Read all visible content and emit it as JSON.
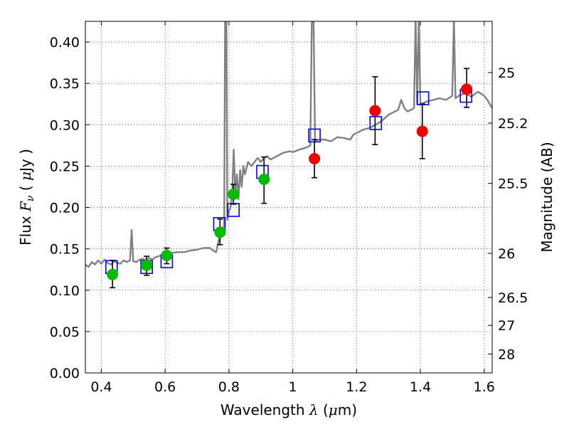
{
  "chart_data": {
    "type": "scatter",
    "xlabel": "Wavelength  λ (μm)",
    "ylabel": "Flux  F_ν  ( μJy )",
    "ylabel_parts": {
      "pre": "Flux  ",
      "sym": "F",
      "sub": "ν",
      "post": "  ( ",
      "mu": "μ",
      "unit": "Jy )"
    },
    "xlabel_parts": {
      "pre": "Wavelength  ",
      "sym": "λ",
      "post": " (",
      "mu": "μ",
      "unit": "m)"
    },
    "y2label": "Magnitude (AB)",
    "xlim": [
      0.35,
      1.625
    ],
    "ylim": [
      0.0,
      0.425
    ],
    "grid": true,
    "x_ticks": [
      0.4,
      0.6,
      0.8,
      1.0,
      1.2,
      1.4,
      1.6
    ],
    "x_tick_labels": [
      "0.4",
      "0.6",
      "0.8",
      "1",
      "1.2",
      "1.4",
      "1.6"
    ],
    "y_ticks": [
      0.0,
      0.05,
      0.1,
      0.15,
      0.2,
      0.25,
      0.3,
      0.35,
      0.4
    ],
    "y_tick_labels": [
      "0.00",
      "0.05",
      "0.10",
      "0.15",
      "0.20",
      "0.25",
      "0.30",
      "0.35",
      "0.40"
    ],
    "magnitude_ticks": [
      {
        "label": "25",
        "flux": 0.3631
      },
      {
        "label": "25.2",
        "flux": 0.302
      },
      {
        "label": "25.5",
        "flux": 0.2291
      },
      {
        "label": "26",
        "flux": 0.1445
      },
      {
        "label": "26.5",
        "flux": 0.0912
      },
      {
        "label": "27",
        "flux": 0.0575
      },
      {
        "label": "28",
        "flux": 0.0229
      }
    ],
    "series": [
      {
        "name": "model spectrum",
        "style": "line",
        "color": "#808080",
        "points": [
          [
            0.35,
            0.131
          ],
          [
            0.36,
            0.128
          ],
          [
            0.37,
            0.134
          ],
          [
            0.38,
            0.131
          ],
          [
            0.39,
            0.136
          ],
          [
            0.4,
            0.132
          ],
          [
            0.41,
            0.137
          ],
          [
            0.42,
            0.133
          ],
          [
            0.43,
            0.131
          ],
          [
            0.44,
            0.135
          ],
          [
            0.45,
            0.133
          ],
          [
            0.46,
            0.132
          ],
          [
            0.47,
            0.136
          ],
          [
            0.48,
            0.134
          ],
          [
            0.49,
            0.136
          ],
          [
            0.495,
            0.173
          ],
          [
            0.5,
            0.135
          ],
          [
            0.51,
            0.134
          ],
          [
            0.52,
            0.137
          ],
          [
            0.53,
            0.138
          ],
          [
            0.54,
            0.136
          ],
          [
            0.55,
            0.139
          ],
          [
            0.56,
            0.137
          ],
          [
            0.57,
            0.14
          ],
          [
            0.58,
            0.141
          ],
          [
            0.59,
            0.143
          ],
          [
            0.6,
            0.142
          ],
          [
            0.62,
            0.145
          ],
          [
            0.64,
            0.146
          ],
          [
            0.66,
            0.146
          ],
          [
            0.68,
            0.148
          ],
          [
            0.7,
            0.149
          ],
          [
            0.72,
            0.151
          ],
          [
            0.74,
            0.151
          ],
          [
            0.75,
            0.148
          ],
          [
            0.76,
            0.146
          ],
          [
            0.77,
            0.164
          ],
          [
            0.78,
            0.175
          ],
          [
            0.785,
            0.178
          ],
          [
            0.788,
            0.43
          ],
          [
            0.792,
            0.43
          ],
          [
            0.795,
            0.185
          ],
          [
            0.8,
            0.195
          ],
          [
            0.805,
            0.2
          ],
          [
            0.81,
            0.215
          ],
          [
            0.815,
            0.27
          ],
          [
            0.82,
            0.215
          ],
          [
            0.825,
            0.24
          ],
          [
            0.83,
            0.21
          ],
          [
            0.835,
            0.245
          ],
          [
            0.84,
            0.225
          ],
          [
            0.845,
            0.25
          ],
          [
            0.85,
            0.24
          ],
          [
            0.86,
            0.255
          ],
          [
            0.87,
            0.25
          ],
          [
            0.88,
            0.255
          ],
          [
            0.89,
            0.26
          ],
          [
            0.9,
            0.255
          ],
          [
            0.91,
            0.26
          ],
          [
            0.92,
            0.262
          ],
          [
            0.93,
            0.258
          ],
          [
            0.95,
            0.262
          ],
          [
            0.97,
            0.266
          ],
          [
            0.99,
            0.268
          ],
          [
            1.0,
            0.267
          ],
          [
            1.02,
            0.27
          ],
          [
            1.04,
            0.272
          ],
          [
            1.055,
            0.275
          ],
          [
            1.06,
            0.43
          ],
          [
            1.065,
            0.43
          ],
          [
            1.07,
            0.28
          ],
          [
            1.08,
            0.282
          ],
          [
            1.1,
            0.282
          ],
          [
            1.12,
            0.28
          ],
          [
            1.14,
            0.285
          ],
          [
            1.16,
            0.284
          ],
          [
            1.18,
            0.282
          ],
          [
            1.19,
            0.288
          ],
          [
            1.2,
            0.29
          ],
          [
            1.22,
            0.294
          ],
          [
            1.24,
            0.296
          ],
          [
            1.26,
            0.3
          ],
          [
            1.28,
            0.305
          ],
          [
            1.3,
            0.312
          ],
          [
            1.32,
            0.316
          ],
          [
            1.33,
            0.318
          ],
          [
            1.34,
            0.33
          ],
          [
            1.35,
            0.32
          ],
          [
            1.36,
            0.316
          ],
          [
            1.37,
            0.318
          ],
          [
            1.38,
            0.32
          ],
          [
            1.385,
            0.43
          ],
          [
            1.39,
            0.325
          ],
          [
            1.395,
            0.43
          ],
          [
            1.4,
            0.325
          ],
          [
            1.42,
            0.328
          ],
          [
            1.44,
            0.33
          ],
          [
            1.46,
            0.332
          ],
          [
            1.48,
            0.33
          ],
          [
            1.5,
            0.335
          ],
          [
            1.505,
            0.43
          ],
          [
            1.51,
            0.332
          ],
          [
            1.52,
            0.335
          ],
          [
            1.54,
            0.338
          ],
          [
            1.56,
            0.334
          ],
          [
            1.58,
            0.34
          ],
          [
            1.6,
            0.335
          ],
          [
            1.61,
            0.33
          ],
          [
            1.625,
            0.32
          ]
        ]
      },
      {
        "name": "model photometry",
        "style": "open-square",
        "color": "#0000ff",
        "points": [
          [
            0.432,
            0.128
          ],
          [
            0.542,
            0.128
          ],
          [
            0.605,
            0.135
          ],
          [
            0.77,
            0.18
          ],
          [
            0.814,
            0.197
          ],
          [
            0.905,
            0.243
          ],
          [
            1.068,
            0.287
          ],
          [
            1.26,
            0.302
          ],
          [
            1.408,
            0.332
          ],
          [
            1.543,
            0.335
          ]
        ]
      },
      {
        "name": "observed (green)",
        "style": "filled-circle",
        "color": "#00bb00",
        "points": [
          {
            "x": 0.435,
            "y": 0.119,
            "lo": 0.103,
            "hi": 0.136
          },
          {
            "x": 0.542,
            "y": 0.13,
            "lo": 0.118,
            "hi": 0.141
          },
          {
            "x": 0.605,
            "y": 0.142,
            "lo": 0.132,
            "hi": 0.151
          },
          {
            "x": 0.772,
            "y": 0.17,
            "lo": 0.155,
            "hi": 0.186
          },
          {
            "x": 0.814,
            "y": 0.216,
            "lo": 0.204,
            "hi": 0.228
          },
          {
            "x": 0.91,
            "y": 0.234,
            "lo": 0.205,
            "hi": 0.261
          }
        ]
      },
      {
        "name": "observed (red)",
        "style": "filled-circle",
        "color": "#ee0000",
        "points": [
          {
            "x": 1.068,
            "y": 0.259,
            "lo": 0.236,
            "hi": 0.282
          },
          {
            "x": 1.258,
            "y": 0.317,
            "lo": 0.276,
            "hi": 0.358
          },
          {
            "x": 1.406,
            "y": 0.292,
            "lo": 0.259,
            "hi": 0.325
          },
          {
            "x": 1.545,
            "y": 0.343,
            "lo": 0.321,
            "hi": 0.368
          }
        ]
      }
    ]
  }
}
